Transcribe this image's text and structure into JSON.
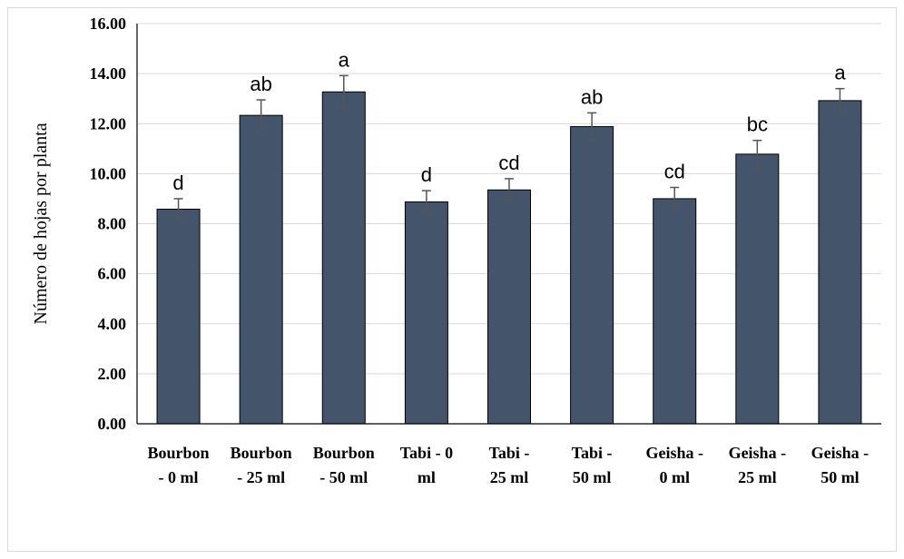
{
  "chart_data": {
    "type": "bar",
    "title": "",
    "xlabel": "",
    "ylabel": "Número de hojas por planta",
    "categories": [
      [
        "Bourbon",
        "- 0 ml"
      ],
      [
        "Bourbon",
        "- 25 ml"
      ],
      [
        "Bourbon",
        "- 50 ml"
      ],
      [
        "Tabi - 0",
        "ml"
      ],
      [
        "Tabi -",
        "25 ml"
      ],
      [
        "Tabi -",
        "50 ml"
      ],
      [
        "Geisha -",
        "0 ml"
      ],
      [
        "Geisha -",
        "25 ml"
      ],
      [
        "Geisha -",
        "50 ml"
      ]
    ],
    "values": [
      8.58,
      12.33,
      13.27,
      8.87,
      9.35,
      11.88,
      9.0,
      10.78,
      12.92
    ],
    "errors": [
      0.42,
      0.62,
      0.65,
      0.45,
      0.45,
      0.55,
      0.45,
      0.55,
      0.48
    ],
    "data_labels": [
      "d",
      "ab",
      "a",
      "d",
      "cd",
      "ab",
      "cd",
      "bc",
      "a"
    ],
    "ylim": [
      0,
      16
    ],
    "yticks": [
      "0.00",
      "2.00",
      "4.00",
      "6.00",
      "8.00",
      "10.00",
      "12.00",
      "14.00",
      "16.00"
    ],
    "grid": true,
    "legend": "none",
    "colors": {
      "bar": "#44546a",
      "grid": "#d9d9d9",
      "error_bar": "#555555"
    }
  }
}
